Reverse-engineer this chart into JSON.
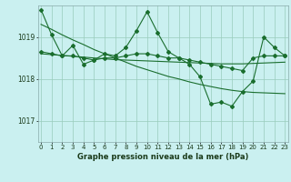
{
  "title": "Graphe pression niveau de la mer (hPa)",
  "background_color": "#caf0f0",
  "grid_color": "#99ccbb",
  "line_color": "#1a6e2e",
  "x_labels": [
    "0",
    "1",
    "2",
    "3",
    "4",
    "5",
    "6",
    "7",
    "8",
    "9",
    "10",
    "11",
    "12",
    "13",
    "14",
    "15",
    "16",
    "17",
    "18",
    "19",
    "20",
    "21",
    "22",
    "23"
  ],
  "yticks": [
    1017,
    1018,
    1019
  ],
  "ylim": [
    1016.5,
    1019.75
  ],
  "xlim": [
    -0.3,
    23.3
  ],
  "series": {
    "volatile": [
      1019.65,
      1019.05,
      1018.55,
      1018.8,
      1018.35,
      1018.45,
      1018.6,
      1018.55,
      1018.75,
      1019.15,
      1019.6,
      1019.1,
      1018.65,
      1018.5,
      1018.35,
      1018.05,
      1017.4,
      1017.45,
      1017.35,
      1017.7,
      1017.95,
      1019.0,
      1018.75,
      1018.55
    ],
    "smooth": [
      1018.65,
      1018.6,
      1018.55,
      1018.55,
      1018.5,
      1018.45,
      1018.5,
      1018.5,
      1018.55,
      1018.6,
      1018.6,
      1018.55,
      1018.5,
      1018.5,
      1018.45,
      1018.4,
      1018.35,
      1018.3,
      1018.25,
      1018.2,
      1018.5,
      1018.55,
      1018.55,
      1018.55
    ],
    "trend_down": [
      1019.3,
      1019.18,
      1019.05,
      1018.93,
      1018.82,
      1018.7,
      1018.6,
      1018.5,
      1018.4,
      1018.3,
      1018.22,
      1018.14,
      1018.06,
      1018.0,
      1017.93,
      1017.87,
      1017.82,
      1017.77,
      1017.73,
      1017.7,
      1017.68,
      1017.67,
      1017.66,
      1017.65
    ],
    "trend_flat": [
      1018.6,
      1018.58,
      1018.56,
      1018.54,
      1018.52,
      1018.5,
      1018.48,
      1018.46,
      1018.45,
      1018.44,
      1018.43,
      1018.42,
      1018.41,
      1018.4,
      1018.39,
      1018.38,
      1018.37,
      1018.36,
      1018.36,
      1018.36,
      1018.37,
      1018.38,
      1018.39,
      1018.4
    ]
  }
}
